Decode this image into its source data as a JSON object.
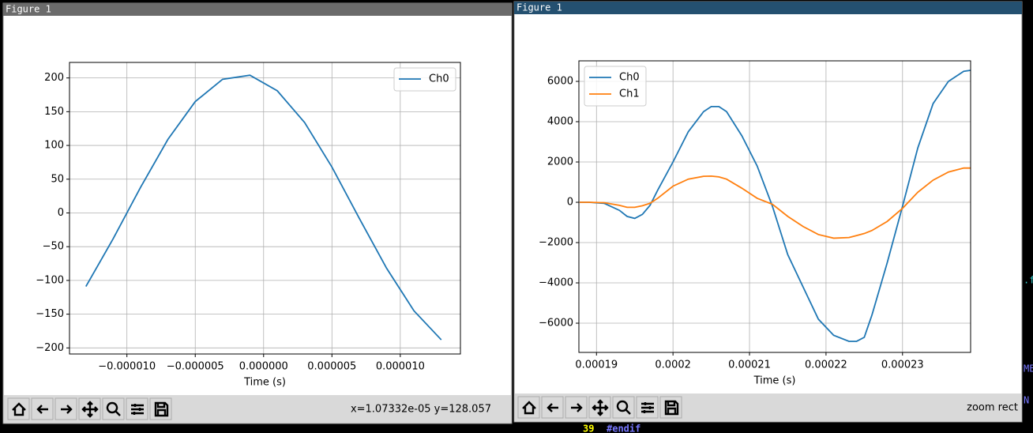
{
  "windows": [
    {
      "title": "Figure 1",
      "status": "x=1.07332e-05  y=128.057"
    },
    {
      "title": "Figure 1",
      "status": "zoom rect"
    }
  ],
  "terminal": {
    "line_number": "39",
    "line_text": "#endif",
    "right_fragments": [
      ".f",
      "ME",
      "N"
    ]
  },
  "chart_data": [
    {
      "type": "line",
      "xlabel": "Time (s)",
      "legend": "upper right",
      "grid": true,
      "x": [
        -1.3e-05,
        -1.1e-05,
        -9e-06,
        -7e-06,
        -5e-06,
        -3e-06,
        -1e-06,
        1e-06,
        3e-06,
        5e-06,
        7e-06,
        9e-06,
        1.1e-05,
        1.3e-05
      ],
      "series": [
        {
          "name": "Ch0",
          "color": "#1f77b4",
          "values": [
            -109,
            -38,
            38,
            109,
            165,
            198,
            204,
            181,
            134,
            68,
            -8,
            -82,
            -145,
            -188
          ]
        }
      ],
      "xlim": [
        -1.42e-05,
        1.44e-05
      ],
      "xticks": [
        {
          "value": -1e-05,
          "label": "−0.000010"
        },
        {
          "value": -5e-06,
          "label": "−0.000005"
        },
        {
          "value": 0,
          "label": "0.000000"
        },
        {
          "value": 5e-06,
          "label": "0.000005"
        },
        {
          "value": 1e-05,
          "label": "0.000010"
        }
      ],
      "ylim": [
        -209,
        223
      ],
      "yticks": [
        {
          "value": -200,
          "label": "−200"
        },
        {
          "value": -150,
          "label": "−150"
        },
        {
          "value": -100,
          "label": "−100"
        },
        {
          "value": -50,
          "label": "−50"
        },
        0,
        50,
        100,
        150,
        200
      ]
    },
    {
      "type": "line",
      "xlabel": "Time (s)",
      "legend": "upper left",
      "grid": true,
      "x": [
        0.0001878,
        0.000189,
        0.000191,
        0.000193,
        0.000194,
        0.000195,
        0.000196,
        0.000197,
        0.000198,
        0.0002,
        0.000202,
        0.000204,
        0.000205,
        0.000206,
        0.000207,
        0.000209,
        0.000211,
        0.000213,
        0.000215,
        0.000217,
        0.000219,
        0.000221,
        0.000223,
        0.000224,
        0.000225,
        0.000226,
        0.000228,
        0.00023,
        0.000232,
        0.000234,
        0.000236,
        0.000238,
        0.0002389
      ],
      "series": [
        {
          "name": "Ch0",
          "color": "#1f77b4",
          "values": [
            0,
            0,
            -50,
            -400,
            -700,
            -800,
            -600,
            -150,
            600,
            2000,
            3500,
            4500,
            4750,
            4750,
            4500,
            3300,
            1800,
            -200,
            -2600,
            -4200,
            -5800,
            -6600,
            -6900,
            -6900,
            -6700,
            -5600,
            -3000,
            -200,
            2700,
            4900,
            6000,
            6500,
            6550
          ]
        },
        {
          "name": "Ch1",
          "color": "#ff7f0e",
          "values": [
            0,
            0,
            -20,
            -150,
            -250,
            -250,
            -170,
            -50,
            200,
            800,
            1150,
            1290,
            1300,
            1260,
            1150,
            700,
            200,
            -100,
            -700,
            -1200,
            -1600,
            -1780,
            -1750,
            -1650,
            -1550,
            -1400,
            -950,
            -300,
            500,
            1100,
            1500,
            1700,
            1700
          ]
        }
      ],
      "xlim": [
        0.0001877,
        0.0002389
      ],
      "xticks": [
        0.00019,
        0.0002,
        0.00021,
        0.00022,
        0.00023
      ],
      "ylim": [
        -7450,
        7020
      ],
      "yticks": [
        {
          "value": -6000,
          "label": "−6000"
        },
        {
          "value": -4000,
          "label": "−4000"
        },
        {
          "value": -2000,
          "label": "−2000"
        },
        0,
        2000,
        4000,
        6000
      ]
    }
  ]
}
